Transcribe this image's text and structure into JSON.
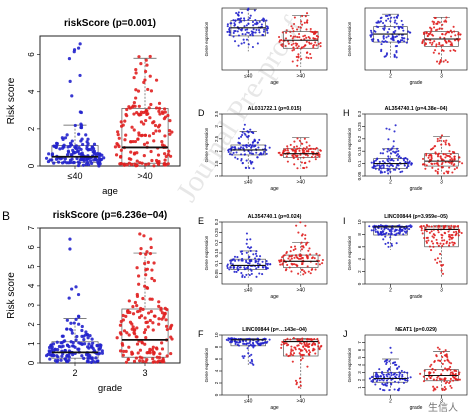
{
  "watermark": {
    "text": "Journal Pre-proof",
    "site": "生信人"
  },
  "colors": {
    "blue": "#2222cc",
    "red": "#e02020",
    "box": "#555555",
    "median": "#111111"
  },
  "chart_data": [
    {
      "id": "A",
      "type": "beeswarm-boxplot",
      "panel_letter": "",
      "title": "riskScore (p=0.001)",
      "xlabel": "age",
      "ylabel": "Risk score",
      "ylim": [
        0,
        7
      ],
      "yticks": [
        0,
        2,
        4,
        6
      ],
      "categories": [
        "≤40",
        ">40"
      ],
      "series": [
        {
          "category": "≤40",
          "color": "blue",
          "n": 150,
          "q1": 0.2,
          "median": 0.5,
          "q3": 1.1,
          "wlow": 0.0,
          "whigh": 2.2,
          "max": 6.6
        },
        {
          "category": ">40",
          "color": "red",
          "n": 160,
          "q1": 0.15,
          "median": 1.0,
          "q3": 3.1,
          "wlow": 0.0,
          "whigh": 5.8,
          "max": 6.8
        }
      ]
    },
    {
      "id": "B",
      "type": "beeswarm-boxplot",
      "panel_letter": "B",
      "title": "riskScore (p=6.236e−04)",
      "xlabel": "grade",
      "ylabel": "Risk score",
      "ylim": [
        0,
        7
      ],
      "yticks": [
        0,
        1,
        2,
        3,
        4,
        5,
        6,
        7
      ],
      "categories": [
        "2",
        "3"
      ],
      "series": [
        {
          "category": "2",
          "color": "blue",
          "n": 150,
          "q1": 0.25,
          "median": 0.55,
          "q3": 1.1,
          "wlow": 0.0,
          "whigh": 2.3,
          "max": 6.5
        },
        {
          "category": "3",
          "color": "red",
          "n": 160,
          "q1": 0.3,
          "median": 1.2,
          "q3": 2.8,
          "wlow": 0.0,
          "whigh": 5.7,
          "max": 6.8
        }
      ]
    },
    {
      "id": "C",
      "type": "beeswarm-boxplot",
      "panel_letter": "",
      "title": "",
      "xlabel": "age",
      "ylabel": "Gene expression",
      "ylim": [
        0,
        1
      ],
      "yticks": [],
      "categories": [
        "≤40",
        ">40"
      ],
      "series": [
        {
          "category": "≤40",
          "color": "blue",
          "n": 110,
          "q1": 0.55,
          "median": 0.68,
          "q3": 0.8,
          "wlow": 0.3,
          "whigh": 0.98,
          "max": 1.0
        },
        {
          "category": ">40",
          "color": "red",
          "n": 110,
          "q1": 0.35,
          "median": 0.48,
          "q3": 0.62,
          "wlow": 0.05,
          "whigh": 0.88,
          "max": 0.92
        }
      ]
    },
    {
      "id": "G",
      "type": "beeswarm-boxplot",
      "panel_letter": "",
      "title": "",
      "xlabel": "grade",
      "ylabel": "Gene expression",
      "ylim": [
        0,
        1
      ],
      "yticks": [],
      "categories": [
        "2",
        "3"
      ],
      "series": [
        {
          "category": "2",
          "color": "blue",
          "n": 110,
          "q1": 0.45,
          "median": 0.58,
          "q3": 0.7,
          "wlow": 0.2,
          "whigh": 0.9,
          "max": 0.95
        },
        {
          "category": "3",
          "color": "red",
          "n": 110,
          "q1": 0.38,
          "median": 0.5,
          "q3": 0.62,
          "wlow": 0.1,
          "whigh": 0.85,
          "max": 0.9
        }
      ]
    },
    {
      "id": "D",
      "type": "beeswarm-boxplot",
      "panel_letter": "D",
      "title": "AL031722.1 (p=0.015)",
      "xlabel": "age",
      "ylabel": "Gene expression",
      "ylim": [
        1.0,
        3.5
      ],
      "yticks": [
        1.0,
        1.5,
        2.0,
        2.5,
        3.0,
        3.5
      ],
      "categories": [
        "≤40",
        ">40"
      ],
      "series": [
        {
          "category": "≤40",
          "color": "blue",
          "n": 110,
          "q1": 1.85,
          "median": 2.05,
          "q3": 2.25,
          "wlow": 1.3,
          "whigh": 2.8,
          "max": 3.15
        },
        {
          "category": ">40",
          "color": "red",
          "n": 110,
          "q1": 1.75,
          "median": 1.9,
          "q3": 2.1,
          "wlow": 1.3,
          "whigh": 2.55,
          "max": 2.7
        }
      ]
    },
    {
      "id": "H",
      "type": "beeswarm-boxplot",
      "panel_letter": "H",
      "title": "AL354740.1 (p=4.38e−04)",
      "xlabel": "grade",
      "ylabel": "Gene expression",
      "ylim": [
        0.05,
        0.3
      ],
      "yticks": [
        0.05,
        0.1,
        0.15,
        0.2,
        0.25,
        0.3
      ],
      "categories": [
        "2",
        "3"
      ],
      "series": [
        {
          "category": "2",
          "color": "blue",
          "n": 110,
          "q1": 0.08,
          "median": 0.1,
          "q3": 0.12,
          "wlow": 0.06,
          "whigh": 0.16,
          "max": 0.26
        },
        {
          "category": "3",
          "color": "red",
          "n": 110,
          "q1": 0.09,
          "median": 0.11,
          "q3": 0.14,
          "wlow": 0.06,
          "whigh": 0.21,
          "max": 0.3
        }
      ]
    },
    {
      "id": "E",
      "type": "beeswarm-boxplot",
      "panel_letter": "E",
      "title": "AL354740.1 (p=0.024)",
      "xlabel": "age",
      "ylabel": "Gene expression",
      "ylim": [
        0.0,
        0.3
      ],
      "yticks": [
        0.05,
        0.1,
        0.15,
        0.2,
        0.25,
        0.3
      ],
      "categories": [
        "≤40",
        ">40"
      ],
      "series": [
        {
          "category": "≤40",
          "color": "blue",
          "n": 110,
          "q1": 0.07,
          "median": 0.09,
          "q3": 0.12,
          "wlow": 0.03,
          "whigh": 0.16,
          "max": 0.28
        },
        {
          "category": ">40",
          "color": "red",
          "n": 110,
          "q1": 0.08,
          "median": 0.11,
          "q3": 0.14,
          "wlow": 0.04,
          "whigh": 0.2,
          "max": 0.3
        }
      ]
    },
    {
      "id": "I",
      "type": "beeswarm-boxplot",
      "panel_letter": "I",
      "title": "LINC00844 (p=3.959e−05)",
      "xlabel": "grade",
      "ylabel": "Gene expression",
      "ylim": [
        0,
        10
      ],
      "yticks": [
        0,
        2,
        4,
        6,
        8,
        10
      ],
      "categories": [
        "2",
        "3"
      ],
      "series": [
        {
          "category": "2",
          "color": "blue",
          "n": 110,
          "q1": 7.9,
          "median": 9.2,
          "q3": 9.3,
          "wlow": 5.5,
          "whigh": 9.4,
          "max": 9.5
        },
        {
          "category": "3",
          "color": "red",
          "n": 110,
          "q1": 6.0,
          "median": 8.8,
          "q3": 9.2,
          "wlow": 1.0,
          "whigh": 9.4,
          "max": 9.5
        }
      ]
    },
    {
      "id": "F",
      "type": "beeswarm-boxplot",
      "panel_letter": "F",
      "title": "LINC00844 (p=…143e−04)",
      "xlabel": "age",
      "ylabel": "Gene expression",
      "ylim": [
        0,
        10
      ],
      "yticks": [
        0,
        2,
        4,
        6,
        8,
        10
      ],
      "categories": [
        "≤40",
        ">40"
      ],
      "series": [
        {
          "category": "≤40",
          "color": "blue",
          "n": 110,
          "q1": 8.2,
          "median": 9.2,
          "q3": 9.3,
          "wlow": 5.0,
          "whigh": 9.4,
          "max": 9.5
        },
        {
          "category": ">40",
          "color": "red",
          "n": 110,
          "q1": 6.5,
          "median": 8.9,
          "q3": 9.2,
          "wlow": 1.0,
          "whigh": 9.4,
          "max": 9.5
        }
      ]
    },
    {
      "id": "J",
      "type": "beeswarm-boxplot",
      "panel_letter": "J",
      "title": "NEAT1 (p=0.029)",
      "xlabel": "grade",
      "ylabel": "Gene expression",
      "ylim": [
        0,
        8
      ],
      "yticks": [
        1,
        2,
        3,
        4,
        5,
        6,
        7
      ],
      "categories": [
        "2",
        "3"
      ],
      "series": [
        {
          "category": "2",
          "color": "blue",
          "n": 110,
          "q1": 1.7,
          "median": 2.2,
          "q3": 3.0,
          "wlow": 0.6,
          "whigh": 4.8,
          "max": 6.3
        },
        {
          "category": "3",
          "color": "red",
          "n": 110,
          "q1": 1.9,
          "median": 2.6,
          "q3": 3.4,
          "wlow": 0.5,
          "whigh": 5.8,
          "max": 7.2
        }
      ]
    }
  ]
}
